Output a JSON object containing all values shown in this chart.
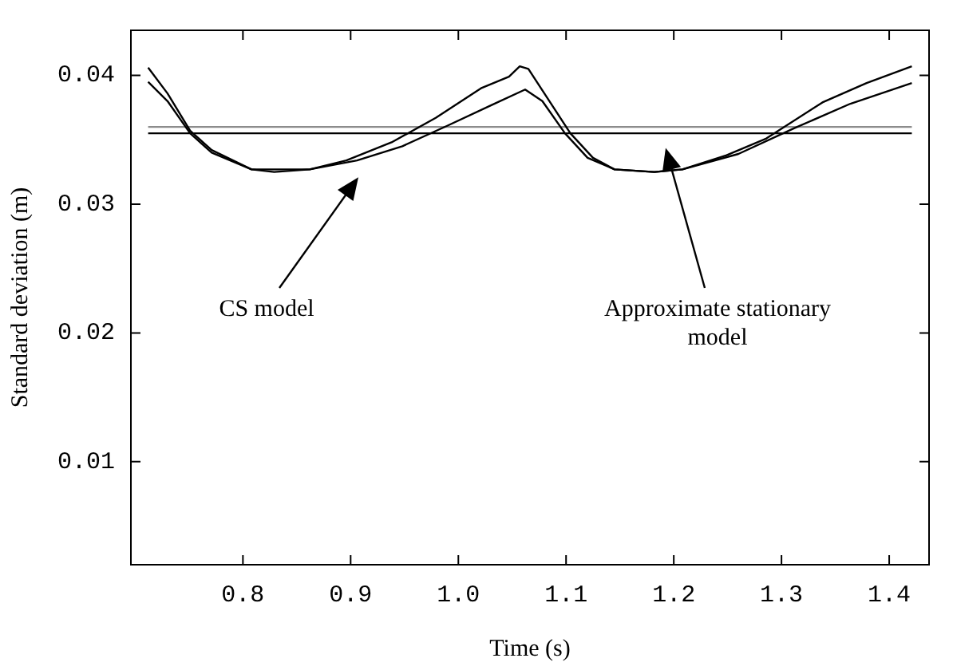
{
  "chart_data": {
    "type": "line",
    "xlabel": "Time (s)",
    "ylabel": "Standard deviation (m)",
    "xlim": [
      0.696,
      1.437
    ],
    "ylim": [
      0.002,
      0.0435
    ],
    "xticks": [
      {
        "value": 0.8,
        "label": "0.8"
      },
      {
        "value": 0.9,
        "label": "0.9"
      },
      {
        "value": 1.0,
        "label": "1.0"
      },
      {
        "value": 1.1,
        "label": "1.1"
      },
      {
        "value": 1.2,
        "label": "1.2"
      },
      {
        "value": 1.3,
        "label": "1.3"
      },
      {
        "value": 1.4,
        "label": "1.4"
      }
    ],
    "yticks": [
      0.01,
      0.02,
      0.03,
      0.04
    ],
    "grid": false,
    "legend": false,
    "marker": "none",
    "line_style": "solid",
    "annotations": [
      "CS model",
      "Approximate stationary model"
    ],
    "series": [
      {
        "color": "#000000",
        "x": [
          0.712,
          0.73,
          0.751,
          0.771,
          0.808,
          0.829,
          0.862,
          0.896,
          0.938,
          0.979,
          1.021,
          1.047,
          1.057,
          1.065,
          1.083,
          1.104,
          1.125,
          1.145,
          1.182,
          1.208,
          1.249,
          1.286,
          1.338,
          1.379,
          1.421
        ],
        "values": [
          0.0406,
          0.0386,
          0.0357,
          0.0342,
          0.0327,
          0.0325,
          0.0327,
          0.0334,
          0.0348,
          0.0367,
          0.039,
          0.0399,
          0.0407,
          0.0405,
          0.0382,
          0.0355,
          0.0336,
          0.0327,
          0.0325,
          0.0327,
          0.0338,
          0.0351,
          0.0379,
          0.0394,
          0.0407
        ]
      },
      {
        "color": "#000000",
        "x": [
          0.712,
          0.73,
          0.751,
          0.771,
          0.808,
          0.862,
          0.906,
          0.948,
          0.99,
          1.031,
          1.062,
          1.078,
          1.099,
          1.12,
          1.145,
          1.182,
          1.208,
          1.26,
          1.312,
          1.364,
          1.421
        ],
        "values": [
          0.0395,
          0.038,
          0.0355,
          0.034,
          0.0327,
          0.0327,
          0.0334,
          0.0345,
          0.0361,
          0.0377,
          0.0389,
          0.038,
          0.0355,
          0.0336,
          0.0327,
          0.0325,
          0.0327,
          0.0339,
          0.0359,
          0.0378,
          0.0394
        ]
      },
      {
        "color": "#8c8c8c",
        "x": [
          0.712,
          1.421
        ],
        "values": [
          0.036,
          0.036
        ]
      },
      {
        "color": "#000000",
        "x": [
          0.712,
          1.421
        ],
        "values": [
          0.0355,
          0.0355
        ]
      }
    ]
  }
}
